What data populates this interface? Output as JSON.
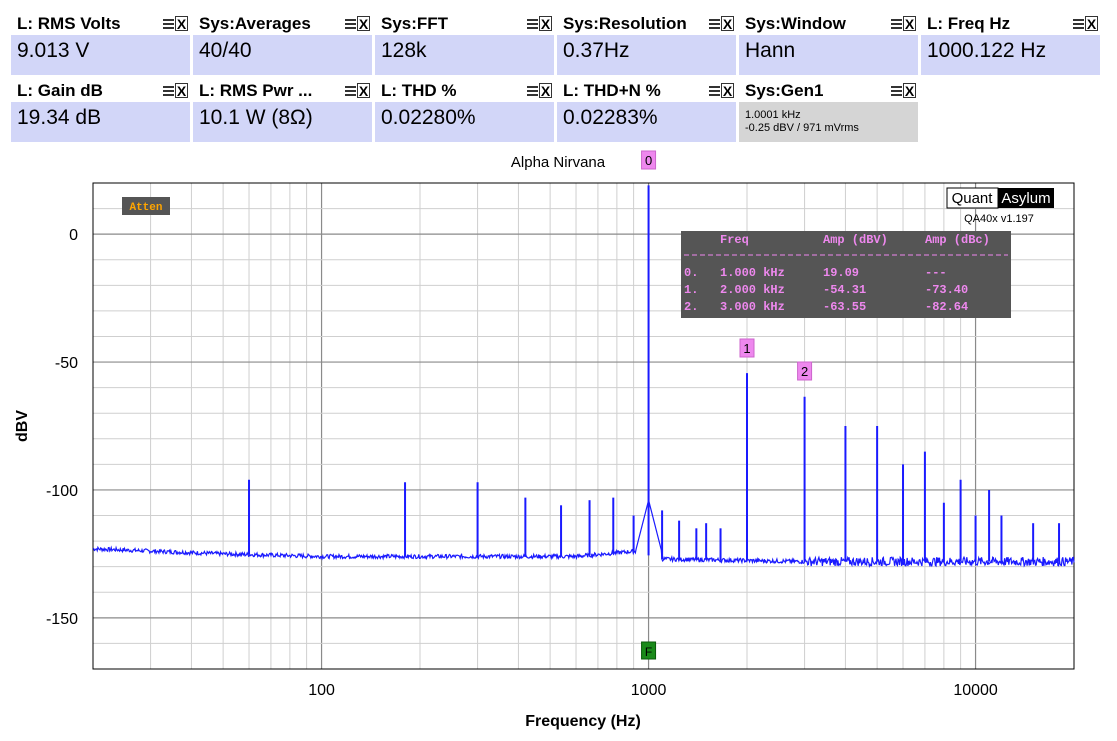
{
  "tiles_row1": [
    {
      "title": "L: RMS Volts",
      "value": "9.013 V"
    },
    {
      "title": "Sys:Averages",
      "value": "40/40"
    },
    {
      "title": "Sys:FFT",
      "value": "128k"
    },
    {
      "title": "Sys:Resolution",
      "value": "0.37Hz"
    },
    {
      "title": "Sys:Window",
      "value": "Hann"
    },
    {
      "title": "L: Freq Hz",
      "value": "1000.122 Hz"
    }
  ],
  "tiles_row2": [
    {
      "title": "L: Gain dB",
      "value": "19.34 dB"
    },
    {
      "title": "L: RMS Pwr ...",
      "value": "10.1 W (8Ω)"
    },
    {
      "title": "L: THD %",
      "value": "0.02280%"
    },
    {
      "title": "L: THD+N %",
      "value": "0.02283%"
    }
  ],
  "gen_tile": {
    "title": "Sys:Gen1",
    "line1": "1.0001 kHz",
    "line2": "-0.25 dBV  / 971 mVrms"
  },
  "chart_data": {
    "type": "line",
    "title": "Alpha Nirvana",
    "xlabel": "Frequency (Hz)",
    "ylabel": "dBV",
    "xscale": "log",
    "xlim": [
      20,
      20000
    ],
    "ylim": [
      -170,
      20
    ],
    "x_ticks": [
      100,
      1000,
      10000
    ],
    "x_tick_labels": [
      "100",
      "1000",
      "10000"
    ],
    "y_ticks": [
      0,
      -50,
      -100,
      -150
    ],
    "y_tick_labels": [
      "0",
      "-50",
      "-100",
      "-150"
    ],
    "grid": true,
    "noise_floor": [
      [
        20,
        -123
      ],
      [
        50,
        -125
      ],
      [
        100,
        -126
      ],
      [
        300,
        -126
      ],
      [
        600,
        -126
      ],
      [
        900,
        -124
      ],
      [
        1100,
        -127
      ],
      [
        3000,
        -128
      ],
      [
        10000,
        -128
      ],
      [
        20000,
        -128
      ]
    ],
    "peaks": [
      {
        "freq": 60,
        "dbv": -96
      },
      {
        "freq": 180,
        "dbv": -97
      },
      {
        "freq": 300,
        "dbv": -97
      },
      {
        "freq": 420,
        "dbv": -103
      },
      {
        "freq": 540,
        "dbv": -106
      },
      {
        "freq": 660,
        "dbv": -104
      },
      {
        "freq": 780,
        "dbv": -103
      },
      {
        "freq": 900,
        "dbv": -110
      },
      {
        "freq": 1000,
        "dbv": 19.09
      },
      {
        "freq": 1100,
        "dbv": -108
      },
      {
        "freq": 1240,
        "dbv": -112
      },
      {
        "freq": 1400,
        "dbv": -115
      },
      {
        "freq": 1500,
        "dbv": -113
      },
      {
        "freq": 1660,
        "dbv": -115
      },
      {
        "freq": 2000,
        "dbv": -54.31
      },
      {
        "freq": 3000,
        "dbv": -63.55
      },
      {
        "freq": 4000,
        "dbv": -75
      },
      {
        "freq": 5000,
        "dbv": -75
      },
      {
        "freq": 6000,
        "dbv": -90
      },
      {
        "freq": 7000,
        "dbv": -85
      },
      {
        "freq": 8000,
        "dbv": -105
      },
      {
        "freq": 9000,
        "dbv": -96
      },
      {
        "freq": 10000,
        "dbv": -110
      },
      {
        "freq": 11000,
        "dbv": -100
      },
      {
        "freq": 12000,
        "dbv": -110
      },
      {
        "freq": 15000,
        "dbv": -113
      },
      {
        "freq": 18000,
        "dbv": -113
      }
    ],
    "markers": [
      {
        "label": "0",
        "freq": 1000,
        "dbv": 19.09
      },
      {
        "label": "1",
        "freq": 2000,
        "dbv": -54.31
      },
      {
        "label": "2",
        "freq": 3000,
        "dbv": -63.55
      }
    ],
    "f_marker": {
      "label": "F",
      "freq": 1000
    },
    "line_color": "#1a1aff",
    "harmonic_table": {
      "headers": [
        "Freq",
        "Amp (dBV)",
        "Amp (dBc)"
      ],
      "rows": [
        [
          "0.",
          "1.000 kHz",
          "19.09",
          "---"
        ],
        [
          "1.",
          "2.000 kHz",
          "-54.31",
          "-73.40"
        ],
        [
          "2.",
          "3.000 kHz",
          "-63.55",
          "-82.64"
        ]
      ]
    },
    "atten_label": "Atten",
    "brand": {
      "left": "Quant",
      "right": "Asylum",
      "version": "QA40x v1.197"
    }
  }
}
